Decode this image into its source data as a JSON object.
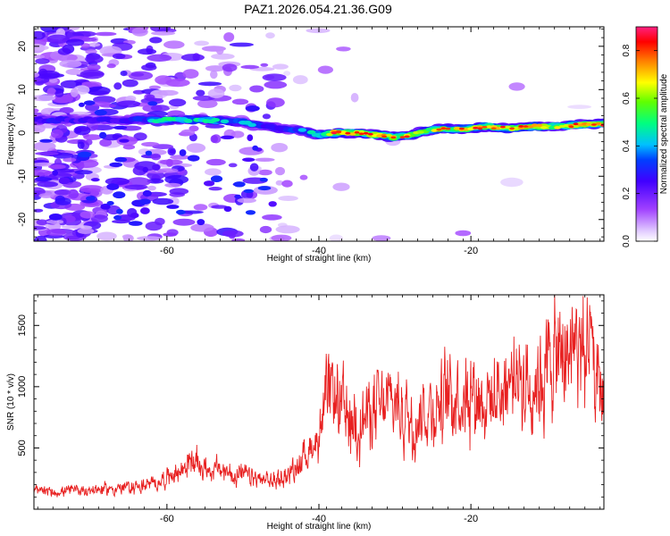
{
  "title": "PAZ1.2026.054.21.36.G09",
  "chart_data": [
    {
      "type": "heatmap",
      "title": "PAZ1.2026.054.21.36.G09",
      "xlabel": "Height of straight line (km)",
      "ylabel": "Frequency (Hz)",
      "xlim": [
        -77.5,
        -2.5
      ],
      "ylim": [
        -25,
        24.5
      ],
      "x_ticks": [
        -60,
        -40,
        -20
      ],
      "x_tick_labels": [
        "-60",
        "-40",
        "-20"
      ],
      "y_ticks": [
        20,
        10,
        0,
        -10,
        -20
      ],
      "y_tick_labels": [
        "20",
        "10",
        "0",
        "-10",
        "-20"
      ],
      "colorbar": {
        "label": "Normalized spectral amplitude",
        "range": [
          0,
          0.9
        ],
        "ticks": [
          0.0,
          0.2,
          0.4,
          0.6,
          0.8
        ],
        "tick_labels": [
          "0.0",
          "0.2",
          "0.4",
          "0.6",
          "0.8"
        ],
        "colors": [
          "#ffffff",
          "#c080ff",
          "#7000ff",
          "#0000ff",
          "#00c0ff",
          "#00ff80",
          "#80ff00",
          "#ffff00",
          "#ff8000",
          "#ff0000",
          "#ff2080"
        ]
      },
      "ridge_frequency_track": {
        "x": [
          -76,
          -70,
          -65,
          -60,
          -55,
          -50,
          -47,
          -45,
          -42,
          -40,
          -38,
          -35,
          -32,
          -30,
          -28,
          -26,
          -24,
          -22,
          -20,
          -18,
          -15,
          -12,
          -10,
          -8,
          -5,
          -2.5
        ],
        "y": [
          3,
          3,
          3,
          3,
          3,
          2.5,
          1.5,
          1,
          0.5,
          -0.5,
          0,
          0,
          -0.5,
          -1,
          -0.5,
          0.5,
          1,
          1,
          1,
          1.5,
          1,
          1.5,
          1.5,
          1.5,
          2,
          2
        ],
        "amplitude": [
          0.45,
          0.4,
          0.45,
          0.65,
          0.6,
          0.55,
          0.5,
          0.5,
          0.55,
          0.6,
          0.85,
          0.8,
          0.8,
          0.75,
          0.8,
          0.7,
          0.75,
          0.75,
          0.8,
          0.75,
          0.75,
          0.8,
          0.8,
          0.75,
          0.8,
          0.8
        ]
      }
    },
    {
      "type": "line",
      "title": "",
      "xlabel": "Height of straight line (km)",
      "ylabel": "SNR (10 * v/v)",
      "xlim": [
        -77.5,
        -2.5
      ],
      "ylim": [
        0,
        1750
      ],
      "x_ticks": [
        -60,
        -40,
        -20
      ],
      "x_tick_labels": [
        "-60",
        "-40",
        "-20"
      ],
      "y_ticks": [
        500,
        1000,
        1500
      ],
      "y_tick_labels": [
        "500",
        "1000",
        "1500"
      ],
      "line_color": "#e82020",
      "envelope": {
        "x": [
          -77.5,
          -75,
          -70,
          -66,
          -62,
          -60,
          -58,
          -57,
          -55,
          -52,
          -50,
          -48,
          -46,
          -44,
          -42,
          -40,
          -39,
          -38,
          -37,
          -36,
          -35,
          -34,
          -33,
          -32,
          -31,
          -30,
          -29,
          -28,
          -27,
          -26,
          -25,
          -24,
          -23,
          -22,
          -21,
          -20,
          -19,
          -18,
          -17,
          -16,
          -15,
          -14,
          -13,
          -12,
          -11,
          -10,
          -9,
          -8,
          -7,
          -6,
          -5,
          -4.5,
          -4,
          -3.5,
          -3,
          -2.5
        ],
        "y": [
          150,
          140,
          160,
          170,
          200,
          260,
          320,
          400,
          340,
          300,
          280,
          240,
          230,
          280,
          420,
          600,
          850,
          950,
          800,
          700,
          750,
          720,
          820,
          800,
          850,
          880,
          800,
          750,
          780,
          820,
          850,
          860,
          900,
          980,
          950,
          1000,
          950,
          900,
          880,
          1000,
          1050,
          1100,
          1050,
          1000,
          1100,
          1150,
          1250,
          1200,
          1300,
          1350,
          1280,
          1200,
          1100,
          1050,
          1000,
          950
        ]
      }
    }
  ]
}
